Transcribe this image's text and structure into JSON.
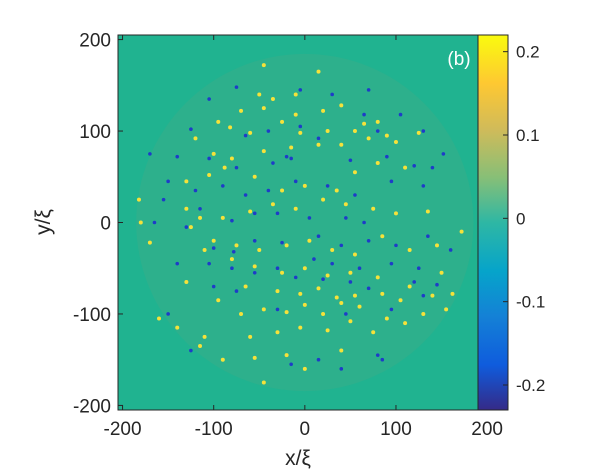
{
  "chart_data": {
    "type": "heatmap",
    "panel_label": "(b)",
    "xlabel": "x/ξ",
    "ylabel": "y/ξ",
    "xlim": [
      -205,
      190
    ],
    "ylim": [
      -205,
      205
    ],
    "x_ticks": [
      -200,
      -100,
      0,
      100,
      200
    ],
    "y_ticks": [
      -200,
      -100,
      0,
      100,
      200
    ],
    "x_tick_labels": [
      "-200",
      "-100",
      "0",
      "100",
      "200"
    ],
    "y_tick_labels": [
      "-200",
      "-100",
      "0",
      "100",
      "200"
    ],
    "colorbar": {
      "range": [
        -0.23,
        0.22
      ],
      "ticks": [
        0.2,
        0.1,
        0,
        -0.1,
        -0.2
      ],
      "tick_labels": [
        "0.2",
        "0.1",
        "0",
        "-0.1",
        "-0.2"
      ],
      "colormap": "parula"
    },
    "background_value": 0.0,
    "background_color": "#20b390",
    "disk_radius": 185,
    "disk_color": "#2db08c",
    "positive_color": "#f5e23a",
    "negative_color": "#1e3cc8",
    "positive_vortices": [
      [
        -45,
        172
      ],
      [
        15,
        165
      ],
      [
        -50,
        140
      ],
      [
        -35,
        135
      ],
      [
        -10,
        140
      ],
      [
        -70,
        122
      ],
      [
        -45,
        125
      ],
      [
        -10,
        118
      ],
      [
        20,
        122
      ],
      [
        40,
        128
      ],
      [
        -95,
        110
      ],
      [
        -82,
        104
      ],
      [
        -60,
        98
      ],
      [
        -25,
        110
      ],
      [
        -5,
        98
      ],
      [
        25,
        100
      ],
      [
        55,
        100
      ],
      [
        65,
        108
      ],
      [
        80,
        110
      ],
      [
        90,
        95
      ],
      [
        -120,
        92
      ],
      [
        -100,
        75
      ],
      [
        -80,
        70
      ],
      [
        -45,
        78
      ],
      [
        -15,
        82
      ],
      [
        15,
        85
      ],
      [
        40,
        85
      ],
      [
        70,
        92
      ],
      [
        100,
        88
      ],
      [
        125,
        98
      ],
      [
        -130,
        45
      ],
      [
        -105,
        52
      ],
      [
        -88,
        60
      ],
      [
        -55,
        50
      ],
      [
        -25,
        35
      ],
      [
        0,
        40
      ],
      [
        35,
        35
      ],
      [
        55,
        55
      ],
      [
        80,
        65
      ],
      [
        110,
        60
      ],
      [
        -130,
        15
      ],
      [
        -115,
        5
      ],
      [
        -90,
        5
      ],
      [
        -60,
        12
      ],
      [
        -35,
        20
      ],
      [
        -10,
        15
      ],
      [
        20,
        25
      ],
      [
        45,
        20
      ],
      [
        75,
        15
      ],
      [
        100,
        10
      ],
      [
        135,
        12
      ],
      [
        -125,
        -5
      ],
      [
        -100,
        -20
      ],
      [
        -75,
        -25
      ],
      [
        -50,
        -30
      ],
      [
        -20,
        -25
      ],
      [
        5,
        -20
      ],
      [
        30,
        -30
      ],
      [
        55,
        -35
      ],
      [
        85,
        -15
      ],
      [
        115,
        -30
      ],
      [
        145,
        -25
      ],
      [
        -110,
        -30
      ],
      [
        -80,
        -40
      ],
      [
        -55,
        -48
      ],
      [
        -25,
        -55
      ],
      [
        0,
        -50
      ],
      [
        25,
        -58
      ],
      [
        50,
        -55
      ],
      [
        80,
        -60
      ],
      [
        115,
        -70
      ],
      [
        150,
        -55
      ],
      [
        -65,
        -70
      ],
      [
        -30,
        -75
      ],
      [
        -5,
        -78
      ],
      [
        15,
        -72
      ],
      [
        35,
        -82
      ],
      [
        55,
        -80
      ],
      [
        85,
        -78
      ],
      [
        105,
        -85
      ],
      [
        140,
        -80
      ],
      [
        -130,
        -65
      ],
      [
        -95,
        -85
      ],
      [
        -70,
        -100
      ],
      [
        -45,
        -95
      ],
      [
        -20,
        -98
      ],
      [
        0,
        -90
      ],
      [
        20,
        -100
      ],
      [
        40,
        -88
      ],
      [
        60,
        -92
      ],
      [
        90,
        -105
      ],
      [
        110,
        -110
      ],
      [
        -160,
        -105
      ],
      [
        -140,
        -115
      ],
      [
        -110,
        -125
      ],
      [
        -60,
        -125
      ],
      [
        -30,
        -120
      ],
      [
        -5,
        -115
      ],
      [
        25,
        -118
      ],
      [
        50,
        -108
      ],
      [
        75,
        -120
      ],
      [
        130,
        -100
      ],
      [
        -115,
        -135
      ],
      [
        -90,
        -150
      ],
      [
        -55,
        -148
      ],
      [
        -20,
        -145
      ],
      [
        0,
        -160
      ],
      [
        40,
        -140
      ],
      [
        -45,
        -175
      ],
      [
        -170,
        -22
      ],
      [
        -180,
        0
      ],
      [
        172,
        -10
      ],
      [
        155,
        -95
      ],
      [
        162,
        -78
      ],
      [
        -182,
        25
      ]
    ],
    "negative_vortices": [
      [
        -75,
        148
      ],
      [
        -5,
        145
      ],
      [
        30,
        140
      ],
      [
        -105,
        135
      ],
      [
        70,
        145
      ],
      [
        -125,
        102
      ],
      [
        -65,
        95
      ],
      [
        -40,
        100
      ],
      [
        -5,
        105
      ],
      [
        15,
        92
      ],
      [
        65,
        118
      ],
      [
        80,
        100
      ],
      [
        105,
        118
      ],
      [
        130,
        100
      ],
      [
        152,
        75
      ],
      [
        -170,
        75
      ],
      [
        -140,
        72
      ],
      [
        -105,
        70
      ],
      [
        -75,
        60
      ],
      [
        -35,
        65
      ],
      [
        -15,
        70
      ],
      [
        -20,
        72
      ],
      [
        50,
        68
      ],
      [
        90,
        72
      ],
      [
        120,
        62
      ],
      [
        140,
        60
      ],
      [
        -155,
        25
      ],
      [
        -150,
        45
      ],
      [
        -120,
        35
      ],
      [
        -90,
        40
      ],
      [
        -65,
        30
      ],
      [
        -40,
        35
      ],
      [
        -10,
        45
      ],
      [
        25,
        40
      ],
      [
        55,
        30
      ],
      [
        95,
        45
      ],
      [
        130,
        40
      ],
      [
        -115,
        15
      ],
      [
        -80,
        2
      ],
      [
        -55,
        10
      ],
      [
        -30,
        10
      ],
      [
        5,
        5
      ],
      [
        45,
        5
      ],
      [
        65,
        0
      ],
      [
        -165,
        0
      ],
      [
        -130,
        -5
      ],
      [
        -100,
        -28
      ],
      [
        -78,
        -32
      ],
      [
        -55,
        -20
      ],
      [
        -25,
        -22
      ],
      [
        15,
        -15
      ],
      [
        40,
        -25
      ],
      [
        70,
        -20
      ],
      [
        100,
        -25
      ],
      [
        135,
        -15
      ],
      [
        160,
        -30
      ],
      [
        -140,
        -45
      ],
      [
        -105,
        -45
      ],
      [
        -80,
        -50
      ],
      [
        -55,
        -55
      ],
      [
        -30,
        -50
      ],
      [
        10,
        -40
      ],
      [
        30,
        -45
      ],
      [
        60,
        -50
      ],
      [
        95,
        -45
      ],
      [
        125,
        -50
      ],
      [
        145,
        -68
      ],
      [
        -100,
        -70
      ],
      [
        -75,
        -75
      ],
      [
        -10,
        -60
      ],
      [
        20,
        -62
      ],
      [
        50,
        -65
      ],
      [
        70,
        -72
      ],
      [
        120,
        -65
      ],
      [
        -30,
        -95
      ],
      [
        45,
        -100
      ],
      [
        95,
        -95
      ],
      [
        130,
        -80
      ],
      [
        -150,
        -100
      ],
      [
        -125,
        -140
      ],
      [
        15,
        -150
      ],
      [
        -15,
        -155
      ],
      [
        80,
        -145
      ],
      [
        85,
        -150
      ],
      [
        40,
        -160
      ]
    ]
  }
}
